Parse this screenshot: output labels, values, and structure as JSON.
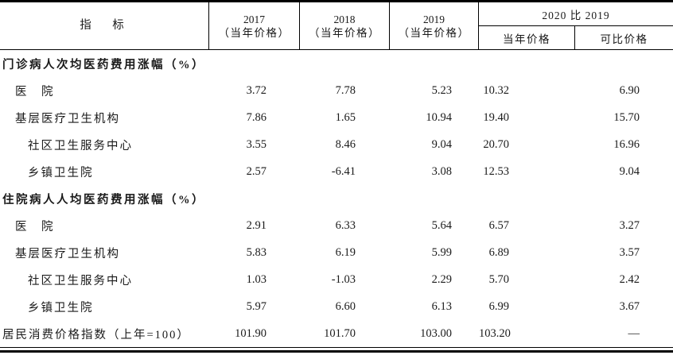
{
  "table": {
    "header": {
      "indicator": "指　标",
      "year_cols": [
        {
          "year": "2017",
          "note": "（当年价格）"
        },
        {
          "year": "2018",
          "note": "（当年价格）"
        },
        {
          "year": "2019",
          "note": "（当年价格）"
        }
      ],
      "group_label": "2020 比 2019",
      "group_subs": [
        "当年价格",
        "可比价格"
      ]
    },
    "rows": [
      {
        "type": "section",
        "label": "门诊病人次均医药费用涨幅（%）"
      },
      {
        "type": "data",
        "indent": 1,
        "label": "医　院",
        "values": [
          "3.72",
          "7.78",
          "5.23",
          "10.32",
          "6.90"
        ]
      },
      {
        "type": "data",
        "indent": 1,
        "label": "基层医疗卫生机构",
        "values": [
          "7.86",
          "1.65",
          "10.94",
          "19.40",
          "15.70"
        ]
      },
      {
        "type": "data",
        "indent": 2,
        "label": "社区卫生服务中心",
        "values": [
          "3.55",
          "8.46",
          "9.04",
          "20.70",
          "16.96"
        ]
      },
      {
        "type": "data",
        "indent": 2,
        "label": "乡镇卫生院",
        "values": [
          "2.57",
          "-6.41",
          "3.08",
          "12.53",
          "9.04"
        ]
      },
      {
        "type": "section",
        "label": "住院病人人均医药费用涨幅（%）"
      },
      {
        "type": "data",
        "indent": 1,
        "label": "医　院",
        "values": [
          "2.91",
          "6.33",
          "5.64",
          "6.57",
          "3.27"
        ]
      },
      {
        "type": "data",
        "indent": 1,
        "label": "基层医疗卫生机构",
        "values": [
          "5.83",
          "6.19",
          "5.99",
          "6.89",
          "3.57"
        ]
      },
      {
        "type": "data",
        "indent": 2,
        "label": "社区卫生服务中心",
        "values": [
          "1.03",
          "-1.03",
          "2.29",
          "5.70",
          "2.42"
        ]
      },
      {
        "type": "data",
        "indent": 2,
        "label": "乡镇卫生院",
        "values": [
          "5.97",
          "6.60",
          "6.13",
          "6.99",
          "3.67"
        ]
      },
      {
        "type": "data",
        "indent": 0,
        "label": "居民消费价格指数（上年=100）",
        "values": [
          "101.90",
          "101.70",
          "103.00",
          "103.20",
          "—"
        ]
      }
    ]
  }
}
